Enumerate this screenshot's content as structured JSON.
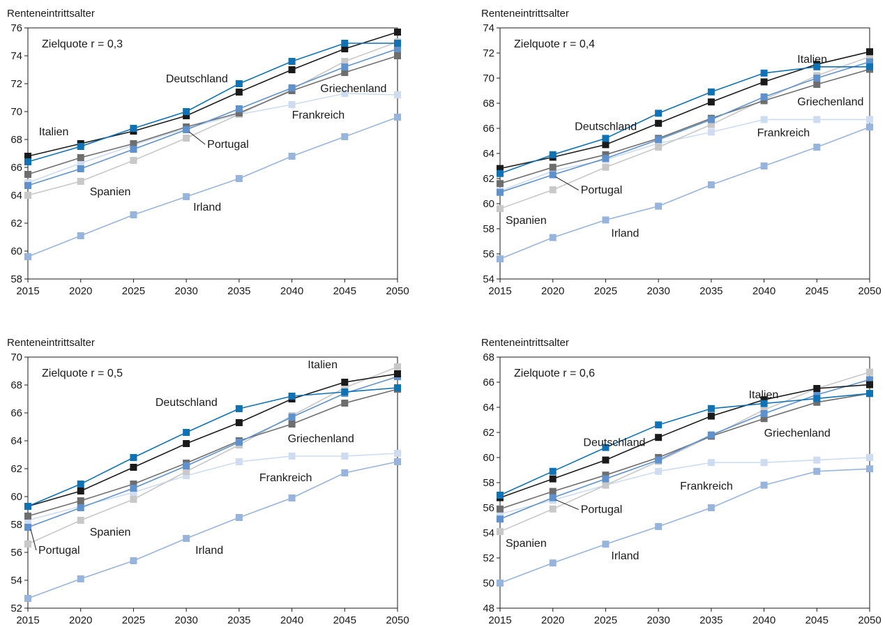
{
  "chart_data": [
    {
      "type": "line",
      "ylabel": "Renteneintrittsalter",
      "annotation": "Zielquote r = 0,3",
      "x": [
        2015,
        2020,
        2025,
        2030,
        2035,
        2040,
        2045,
        2050
      ],
      "ylim": [
        58,
        76
      ],
      "yticks": [
        58,
        60,
        62,
        64,
        66,
        68,
        70,
        72,
        74,
        76
      ],
      "series": [
        {
          "name": "Italien",
          "color": "#1a1a1a",
          "values": [
            66.8,
            67.7,
            68.6,
            69.7,
            71.4,
            73.0,
            74.5,
            75.7
          ]
        },
        {
          "name": "Deutschland",
          "color": "#0e72b5",
          "values": [
            66.4,
            67.5,
            68.8,
            70.0,
            72.0,
            73.6,
            74.9,
            74.9
          ]
        },
        {
          "name": "Griechenland",
          "color": "#6e6e6e",
          "values": [
            65.5,
            66.7,
            67.7,
            68.9,
            69.9,
            71.5,
            72.8,
            74.0
          ]
        },
        {
          "name": "Portugal",
          "color": "#5f92cc",
          "values": [
            64.7,
            65.9,
            67.3,
            68.7,
            70.2,
            71.7,
            73.2,
            74.5
          ]
        },
        {
          "name": "Spanien",
          "color": "#c8c8c8",
          "values": [
            64.0,
            65.0,
            66.5,
            68.1,
            69.8,
            71.6,
            73.6,
            75.0
          ]
        },
        {
          "name": "Frankreich",
          "color": "#cddcf0",
          "values": [
            64.9,
            66.3,
            67.6,
            68.8,
            69.8,
            70.5,
            71.3,
            71.2
          ]
        },
        {
          "name": "Irland",
          "color": "#97b5dc",
          "values": [
            59.6,
            61.1,
            62.6,
            63.9,
            65.2,
            66.8,
            68.2,
            69.6
          ]
        }
      ],
      "labels": [
        {
          "series": "Italien",
          "text": "Italien"
        },
        {
          "series": "Deutschland",
          "text": "Deutschland"
        },
        {
          "series": "Griechenland",
          "text": "Griechenland"
        },
        {
          "series": "Portugal",
          "text": "Portugal"
        },
        {
          "series": "Spanien",
          "text": "Spanien"
        },
        {
          "series": "Frankreich",
          "text": "Frankreich"
        },
        {
          "series": "Irland",
          "text": "Irland"
        }
      ]
    },
    {
      "type": "line",
      "ylabel": "Renteneintrittsalter",
      "annotation": "Zielquote r = 0,4",
      "x": [
        2015,
        2020,
        2025,
        2030,
        2035,
        2040,
        2045,
        2050
      ],
      "ylim": [
        54,
        74
      ],
      "yticks": [
        54,
        56,
        58,
        60,
        62,
        64,
        66,
        68,
        70,
        72,
        74
      ],
      "series": [
        {
          "name": "Italien",
          "color": "#1a1a1a",
          "values": [
            62.8,
            63.7,
            64.7,
            66.4,
            68.1,
            69.7,
            71.1,
            72.1
          ]
        },
        {
          "name": "Deutschland",
          "color": "#0e72b5",
          "values": [
            62.4,
            63.9,
            65.2,
            67.2,
            68.9,
            70.4,
            70.9,
            70.9
          ]
        },
        {
          "name": "Griechenland",
          "color": "#6e6e6e",
          "values": [
            61.6,
            62.9,
            63.9,
            65.2,
            66.8,
            68.2,
            69.5,
            70.7
          ]
        },
        {
          "name": "Portugal",
          "color": "#5f92cc",
          "values": [
            60.9,
            62.3,
            63.6,
            65.1,
            66.7,
            68.5,
            70.0,
            71.3
          ]
        },
        {
          "name": "Spanien",
          "color": "#c8c8c8",
          "values": [
            59.6,
            61.1,
            62.9,
            64.5,
            66.3,
            68.3,
            70.2,
            71.7
          ]
        },
        {
          "name": "Frankreich",
          "color": "#cddcf0",
          "values": [
            61.0,
            62.6,
            63.5,
            64.8,
            65.7,
            66.7,
            66.7,
            66.7
          ]
        },
        {
          "name": "Irland",
          "color": "#97b5dc",
          "values": [
            55.6,
            57.3,
            58.7,
            59.8,
            61.5,
            63.0,
            64.5,
            66.1
          ]
        }
      ],
      "labels": [
        {
          "series": "Italien",
          "text": "Italien"
        },
        {
          "series": "Deutschland",
          "text": "Deutschland"
        },
        {
          "series": "Griechenland",
          "text": "Griechenland"
        },
        {
          "series": "Portugal",
          "text": "Portugal"
        },
        {
          "series": "Spanien",
          "text": "Spanien"
        },
        {
          "series": "Frankreich",
          "text": "Frankreich"
        },
        {
          "series": "Irland",
          "text": "Irland"
        }
      ]
    },
    {
      "type": "line",
      "ylabel": "Renteneintrittsalter",
      "annotation": "Zielquote r = 0,5",
      "x": [
        2015,
        2020,
        2025,
        2030,
        2035,
        2040,
        2045,
        2050
      ],
      "ylim": [
        52,
        70
      ],
      "yticks": [
        52,
        54,
        56,
        58,
        60,
        62,
        64,
        66,
        68,
        70
      ],
      "series": [
        {
          "name": "Italien",
          "color": "#1a1a1a",
          "values": [
            59.3,
            60.4,
            62.1,
            63.8,
            65.3,
            67.0,
            68.2,
            68.8
          ]
        },
        {
          "name": "Deutschland",
          "color": "#0e72b5",
          "values": [
            59.3,
            60.9,
            62.8,
            64.6,
            66.3,
            67.2,
            67.5,
            67.8
          ]
        },
        {
          "name": "Griechenland",
          "color": "#6e6e6e",
          "values": [
            58.6,
            59.7,
            60.9,
            62.4,
            64.0,
            65.2,
            66.7,
            67.7
          ]
        },
        {
          "name": "Portugal",
          "color": "#5f92cc",
          "values": [
            57.8,
            59.2,
            60.6,
            62.2,
            63.9,
            65.7,
            67.4,
            68.6
          ]
        },
        {
          "name": "Spanien",
          "color": "#c8c8c8",
          "values": [
            56.6,
            58.3,
            59.8,
            61.8,
            63.7,
            65.8,
            67.8,
            69.3
          ]
        },
        {
          "name": "Frankreich",
          "color": "#cddcf0",
          "values": [
            58.3,
            59.3,
            60.3,
            61.5,
            62.5,
            62.9,
            62.9,
            63.1
          ]
        },
        {
          "name": "Irland",
          "color": "#97b5dc",
          "values": [
            52.7,
            54.1,
            55.4,
            57.0,
            58.5,
            59.9,
            61.7,
            62.5
          ]
        }
      ],
      "labels": [
        {
          "series": "Italien",
          "text": "Italien"
        },
        {
          "series": "Deutschland",
          "text": "Deutschland"
        },
        {
          "series": "Griechenland",
          "text": "Griechenland"
        },
        {
          "series": "Portugal",
          "text": "Portugal"
        },
        {
          "series": "Spanien",
          "text": "Spanien"
        },
        {
          "series": "Frankreich",
          "text": "Frankreich"
        },
        {
          "series": "Irland",
          "text": "Irland"
        }
      ]
    },
    {
      "type": "line",
      "ylabel": "Renteneintrittsalter",
      "annotation": "Zielquote r = 0,6",
      "x": [
        2015,
        2020,
        2025,
        2030,
        2035,
        2040,
        2045,
        2050
      ],
      "ylim": [
        48,
        68
      ],
      "yticks": [
        48,
        50,
        52,
        54,
        56,
        58,
        60,
        62,
        64,
        66,
        68
      ],
      "series": [
        {
          "name": "Italien",
          "color": "#1a1a1a",
          "values": [
            56.8,
            58.3,
            59.8,
            61.6,
            63.3,
            64.6,
            65.5,
            65.8
          ]
        },
        {
          "name": "Deutschland",
          "color": "#0e72b5",
          "values": [
            57.0,
            58.9,
            60.8,
            62.6,
            63.9,
            64.3,
            64.7,
            65.1
          ]
        },
        {
          "name": "Griechenland",
          "color": "#6e6e6e",
          "values": [
            55.9,
            57.3,
            58.6,
            60.0,
            61.7,
            63.1,
            64.4,
            65.1
          ]
        },
        {
          "name": "Portugal",
          "color": "#5f92cc",
          "values": [
            55.1,
            56.8,
            58.3,
            59.8,
            61.8,
            63.5,
            65.0,
            66.2
          ]
        },
        {
          "name": "Spanien",
          "color": "#c8c8c8",
          "values": [
            54.1,
            55.9,
            57.8,
            59.7,
            61.7,
            63.8,
            65.5,
            66.8
          ]
        },
        {
          "name": "Frankreich",
          "color": "#cddcf0",
          "values": [
            55.5,
            56.6,
            57.8,
            58.9,
            59.6,
            59.6,
            59.8,
            60.0
          ]
        },
        {
          "name": "Irland",
          "color": "#97b5dc",
          "values": [
            50.0,
            51.6,
            53.1,
            54.5,
            56.0,
            57.8,
            58.9,
            59.1
          ]
        }
      ],
      "labels": [
        {
          "series": "Italien",
          "text": "Italien"
        },
        {
          "series": "Deutschland",
          "text": "Deutschland"
        },
        {
          "series": "Griechenland",
          "text": "Griechenland"
        },
        {
          "series": "Portugal",
          "text": "Portugal"
        },
        {
          "series": "Spanien",
          "text": "Spanien"
        },
        {
          "series": "Frankreich",
          "text": "Frankreich"
        },
        {
          "series": "Irland",
          "text": "Irland"
        }
      ]
    }
  ]
}
